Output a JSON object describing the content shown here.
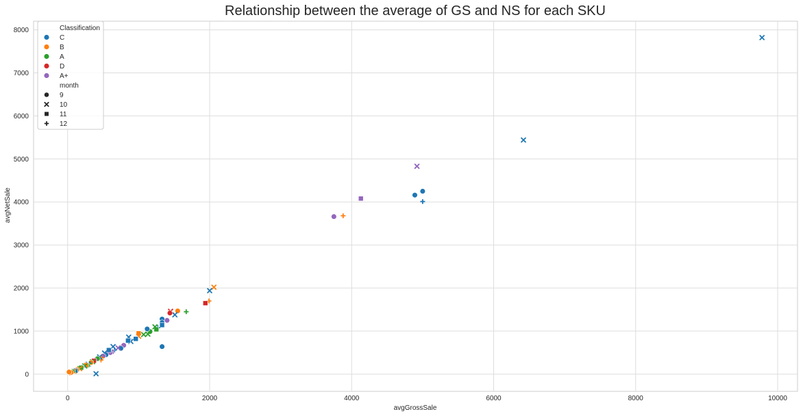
{
  "chart_data": {
    "type": "scatter",
    "title": "Relationship between the average of GS and NS for each SKU",
    "xlabel": "avgGrossSale",
    "ylabel": "avgNetSale",
    "xlim": [
      -480,
      10280
    ],
    "ylim": [
      -400,
      8200
    ],
    "x_ticks": [
      0,
      2000,
      4000,
      6000,
      8000,
      10000
    ],
    "y_ticks": [
      0,
      1000,
      2000,
      3000,
      4000,
      5000,
      6000,
      7000,
      8000
    ],
    "grid": true,
    "legend": {
      "position": "top-left",
      "hue_title": "Classification",
      "hue": [
        {
          "label": "C",
          "color": "#1f77b4"
        },
        {
          "label": "B",
          "color": "#ff7f0e"
        },
        {
          "label": "A",
          "color": "#2ca02c"
        },
        {
          "label": "D",
          "color": "#d62728"
        },
        {
          "label": "A+",
          "color": "#9467bd"
        }
      ],
      "style_title": "month",
      "style": [
        {
          "label": "9",
          "marker": "circle"
        },
        {
          "label": "10",
          "marker": "x"
        },
        {
          "label": "11",
          "marker": "square"
        },
        {
          "label": "12",
          "marker": "plus"
        }
      ]
    },
    "points": [
      {
        "x": 9780,
        "y": 7820,
        "cls": "C",
        "m": "10"
      },
      {
        "x": 6420,
        "y": 5440,
        "cls": "C",
        "m": "10"
      },
      {
        "x": 4920,
        "y": 4830,
        "cls": "A+",
        "m": "10"
      },
      {
        "x": 5000,
        "y": 4250,
        "cls": "C",
        "m": "9"
      },
      {
        "x": 4890,
        "y": 4160,
        "cls": "C",
        "m": "9"
      },
      {
        "x": 4130,
        "y": 4080,
        "cls": "A+",
        "m": "11"
      },
      {
        "x": 5000,
        "y": 4010,
        "cls": "C",
        "m": "12"
      },
      {
        "x": 3880,
        "y": 3680,
        "cls": "B",
        "m": "12"
      },
      {
        "x": 3750,
        "y": 3660,
        "cls": "A+",
        "m": "9"
      },
      {
        "x": 2060,
        "y": 2020,
        "cls": "B",
        "m": "10"
      },
      {
        "x": 2000,
        "y": 1940,
        "cls": "C",
        "m": "10"
      },
      {
        "x": 1990,
        "y": 1700,
        "cls": "B",
        "m": "12"
      },
      {
        "x": 1940,
        "y": 1650,
        "cls": "D",
        "m": "11"
      },
      {
        "x": 1670,
        "y": 1450,
        "cls": "A",
        "m": "12"
      },
      {
        "x": 1550,
        "y": 1470,
        "cls": "B",
        "m": "9"
      },
      {
        "x": 1510,
        "y": 1380,
        "cls": "C",
        "m": "10"
      },
      {
        "x": 1450,
        "y": 1460,
        "cls": "D",
        "m": "10"
      },
      {
        "x": 1440,
        "y": 1420,
        "cls": "D",
        "m": "9"
      },
      {
        "x": 1400,
        "y": 1250,
        "cls": "A+",
        "m": "9"
      },
      {
        "x": 1330,
        "y": 1280,
        "cls": "C",
        "m": "9"
      },
      {
        "x": 1330,
        "y": 1200,
        "cls": "C",
        "m": "9"
      },
      {
        "x": 1330,
        "y": 1140,
        "cls": "C",
        "m": "11"
      },
      {
        "x": 1330,
        "y": 640,
        "cls": "C",
        "m": "9"
      },
      {
        "x": 1270,
        "y": 1080,
        "cls": "C",
        "m": "12"
      },
      {
        "x": 1250,
        "y": 1040,
        "cls": "A",
        "m": "11"
      },
      {
        "x": 1230,
        "y": 1100,
        "cls": "A",
        "m": "10"
      },
      {
        "x": 1160,
        "y": 990,
        "cls": "A",
        "m": "9"
      },
      {
        "x": 1130,
        "y": 930,
        "cls": "A",
        "m": "10"
      },
      {
        "x": 1120,
        "y": 1050,
        "cls": "C",
        "m": "9"
      },
      {
        "x": 1070,
        "y": 920,
        "cls": "A",
        "m": "10"
      },
      {
        "x": 1000,
        "y": 950,
        "cls": "B",
        "m": "11"
      },
      {
        "x": 1000,
        "y": 880,
        "cls": "B",
        "m": "10"
      },
      {
        "x": 960,
        "y": 820,
        "cls": "C",
        "m": "11"
      },
      {
        "x": 890,
        "y": 760,
        "cls": "C",
        "m": "10"
      },
      {
        "x": 860,
        "y": 860,
        "cls": "C",
        "m": "10"
      },
      {
        "x": 850,
        "y": 780,
        "cls": "C",
        "m": "11"
      },
      {
        "x": 790,
        "y": 670,
        "cls": "A+",
        "m": "9"
      },
      {
        "x": 750,
        "y": 600,
        "cls": "C",
        "m": "9"
      },
      {
        "x": 710,
        "y": 610,
        "cls": "A+",
        "m": "10"
      },
      {
        "x": 660,
        "y": 560,
        "cls": "C",
        "m": "12"
      },
      {
        "x": 640,
        "y": 640,
        "cls": "C",
        "m": "10"
      },
      {
        "x": 620,
        "y": 520,
        "cls": "A+",
        "m": "11"
      },
      {
        "x": 600,
        "y": 500,
        "cls": "A+",
        "m": "9"
      },
      {
        "x": 580,
        "y": 560,
        "cls": "C",
        "m": "11"
      },
      {
        "x": 560,
        "y": 470,
        "cls": "A+",
        "m": "12"
      },
      {
        "x": 540,
        "y": 450,
        "cls": "C",
        "m": "9"
      },
      {
        "x": 520,
        "y": 490,
        "cls": "C",
        "m": "10"
      },
      {
        "x": 500,
        "y": 420,
        "cls": "A+",
        "m": "9"
      },
      {
        "x": 480,
        "y": 380,
        "cls": "B",
        "m": "12"
      },
      {
        "x": 470,
        "y": 330,
        "cls": "B",
        "m": "12"
      },
      {
        "x": 450,
        "y": 400,
        "cls": "C",
        "m": "10"
      },
      {
        "x": 420,
        "y": 360,
        "cls": "A",
        "m": "9"
      },
      {
        "x": 400,
        "y": 10,
        "cls": "C",
        "m": "10"
      },
      {
        "x": 390,
        "y": 330,
        "cls": "A+",
        "m": "12"
      },
      {
        "x": 370,
        "y": 310,
        "cls": "D",
        "m": "11"
      },
      {
        "x": 350,
        "y": 290,
        "cls": "A",
        "m": "10"
      },
      {
        "x": 330,
        "y": 270,
        "cls": "B",
        "m": "9"
      },
      {
        "x": 310,
        "y": 250,
        "cls": "A",
        "m": "12"
      },
      {
        "x": 290,
        "y": 230,
        "cls": "C",
        "m": "10"
      },
      {
        "x": 280,
        "y": 200,
        "cls": "A",
        "m": "9"
      },
      {
        "x": 260,
        "y": 210,
        "cls": "B",
        "m": "11"
      },
      {
        "x": 240,
        "y": 190,
        "cls": "A",
        "m": "10"
      },
      {
        "x": 220,
        "y": 170,
        "cls": "C",
        "m": "12"
      },
      {
        "x": 200,
        "y": 160,
        "cls": "B",
        "m": "9"
      },
      {
        "x": 190,
        "y": 150,
        "cls": "A",
        "m": "11"
      },
      {
        "x": 170,
        "y": 130,
        "cls": "B",
        "m": "10"
      },
      {
        "x": 150,
        "y": 120,
        "cls": "A",
        "m": "12"
      },
      {
        "x": 130,
        "y": 100,
        "cls": "B",
        "m": "9"
      },
      {
        "x": 110,
        "y": 80,
        "cls": "C",
        "m": "11"
      },
      {
        "x": 90,
        "y": 70,
        "cls": "B",
        "m": "10"
      },
      {
        "x": 70,
        "y": 60,
        "cls": "A",
        "m": "9"
      },
      {
        "x": 50,
        "y": 40,
        "cls": "B",
        "m": "9"
      },
      {
        "x": 30,
        "y": 30,
        "cls": "B",
        "m": "12"
      },
      {
        "x": 20,
        "y": 50,
        "cls": "B",
        "m": "9"
      }
    ]
  }
}
